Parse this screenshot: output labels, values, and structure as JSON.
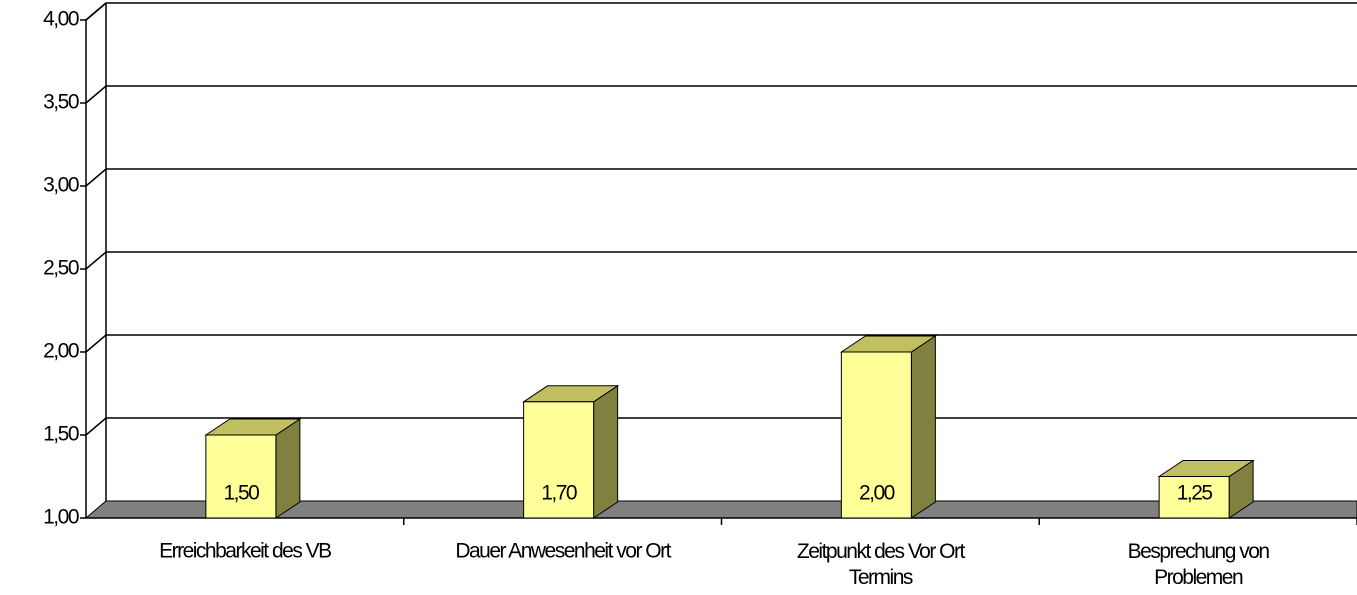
{
  "chart_data": {
    "type": "bar3d",
    "categories": [
      "Erreichbarkeit des VB",
      "Dauer Anwesenheit vor Ort",
      "Zeitpunkt des Vor Ort\nTermins",
      "Besprechung von\nProblemen"
    ],
    "values": [
      1.5,
      1.7,
      2.0,
      1.25
    ],
    "value_labels": [
      "1,50",
      "1,70",
      "2,00",
      "1,25"
    ],
    "color": "#ffff99",
    "ylim": [
      1,
      4
    ],
    "yticks": [
      {
        "value": 1,
        "label": "1,00"
      },
      {
        "value": 1.5,
        "label": "1,50"
      },
      {
        "value": 2,
        "label": "2,00"
      },
      {
        "value": 2.5,
        "label": "2,50"
      },
      {
        "value": 3,
        "label": "3,00"
      },
      {
        "value": 3.5,
        "label": "3,50"
      },
      {
        "value": 4,
        "label": "4,00"
      }
    ],
    "grid": true
  }
}
